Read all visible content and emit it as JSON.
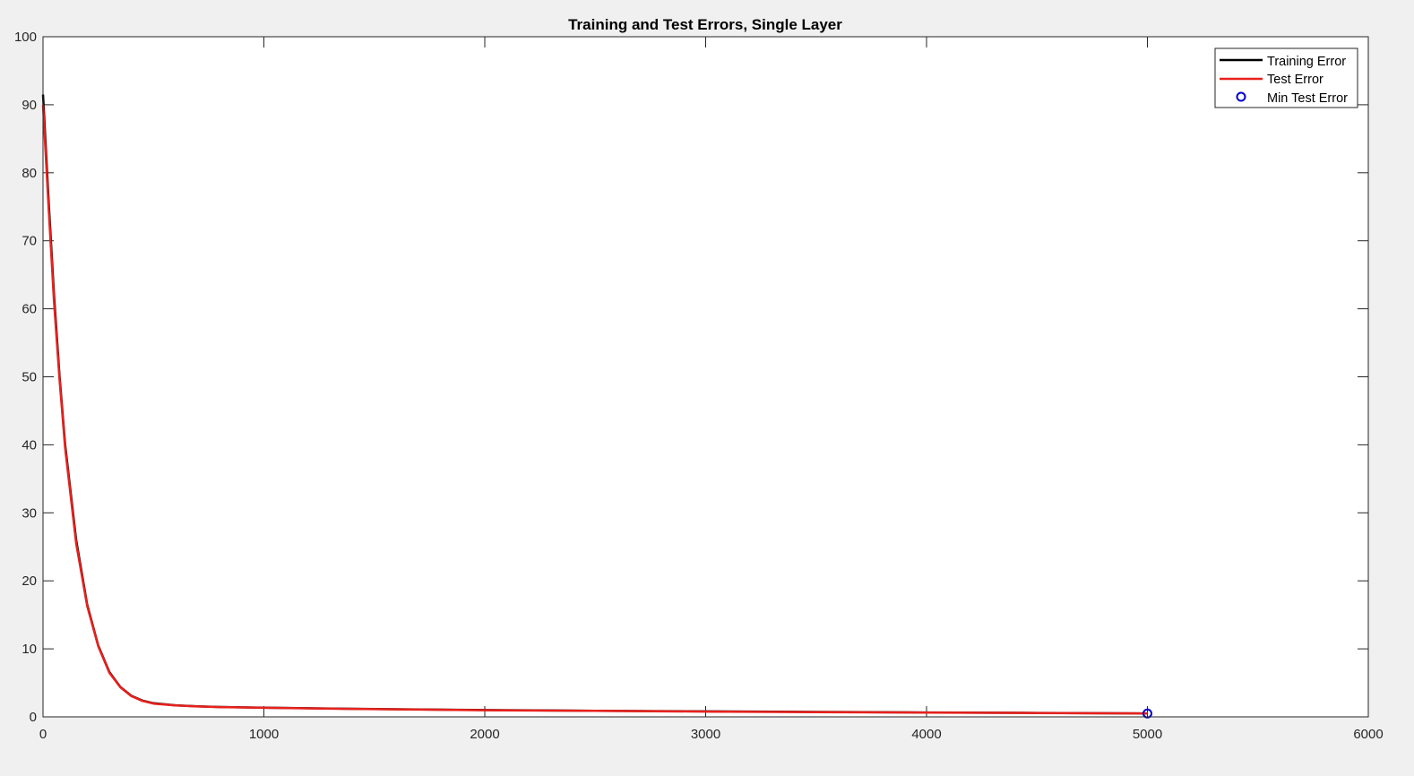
{
  "chart_data": {
    "type": "line",
    "title": "Training and Test Errors, Single Layer",
    "xlabel": "",
    "ylabel": "",
    "xlim": [
      0,
      6000
    ],
    "ylim": [
      0,
      100
    ],
    "xticks": [
      0,
      1000,
      2000,
      3000,
      4000,
      5000,
      6000
    ],
    "yticks": [
      0,
      10,
      20,
      30,
      40,
      50,
      60,
      70,
      80,
      90,
      100
    ],
    "grid": false,
    "legend_position": "top-right",
    "series": [
      {
        "name": "Training Error",
        "color": "#000000",
        "style": "line",
        "x": [
          0,
          25,
          50,
          75,
          100,
          150,
          200,
          250,
          300,
          350,
          400,
          450,
          500,
          600,
          700,
          800,
          1000,
          1500,
          2000,
          2500,
          3000,
          3500,
          4000,
          4500,
          5000
        ],
        "y": [
          91.5,
          76,
          62,
          50,
          40,
          26,
          16.5,
          10.5,
          6.6,
          4.4,
          3.1,
          2.4,
          2.0,
          1.7,
          1.55,
          1.45,
          1.35,
          1.15,
          1.0,
          0.9,
          0.8,
          0.72,
          0.65,
          0.58,
          0.5
        ]
      },
      {
        "name": "Test Error",
        "color": "#e8211d",
        "style": "line",
        "x": [
          0,
          25,
          50,
          75,
          100,
          150,
          200,
          250,
          300,
          350,
          400,
          450,
          500,
          600,
          700,
          800,
          1000,
          1500,
          2000,
          2500,
          3000,
          3500,
          4000,
          4500,
          5000
        ],
        "y": [
          90,
          75,
          61,
          49.5,
          39.5,
          25.5,
          16.3,
          10.4,
          6.5,
          4.35,
          3.05,
          2.35,
          1.95,
          1.68,
          1.53,
          1.43,
          1.33,
          1.13,
          0.98,
          0.88,
          0.78,
          0.7,
          0.63,
          0.56,
          0.5
        ]
      },
      {
        "name": "Min Test Error",
        "color": "#0000cc",
        "style": "marker",
        "x": [
          5000
        ],
        "y": [
          0.5
        ]
      }
    ]
  }
}
